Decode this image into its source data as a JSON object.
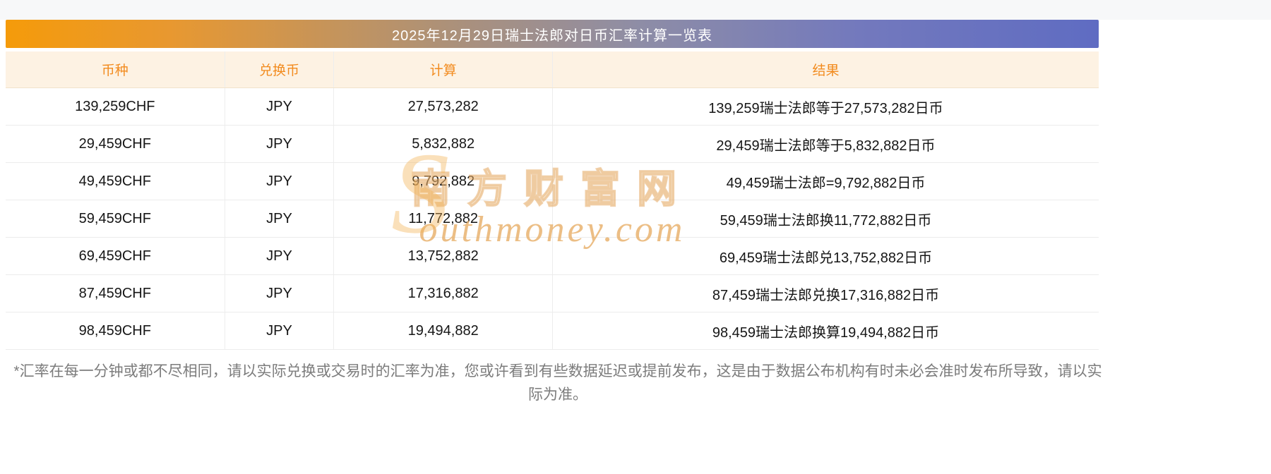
{
  "page": {
    "title": "2025年12月29日瑞士法郎对日币汇率计算一览表",
    "footnote": "*汇率在每一分钟或都不尽相同，请以实际兑换或交易时的汇率为准，您或许看到有些数据延迟或提前发布，这是由于数据公布机构有时未必会准时发布所导致，请以实际为准。"
  },
  "table": {
    "headers": [
      "币种",
      "兑换币",
      "计算",
      "结果"
    ],
    "rows": [
      [
        "139,259CHF",
        "JPY",
        "27,573,282",
        "139,259瑞士法郎等于27,573,282日币"
      ],
      [
        "29,459CHF",
        "JPY",
        "5,832,882",
        "29,459瑞士法郎等于5,832,882日币"
      ],
      [
        "49,459CHF",
        "JPY",
        "9,792,882",
        "49,459瑞士法郎=9,792,882日币"
      ],
      [
        "59,459CHF",
        "JPY",
        "11,772,882",
        "59,459瑞士法郎换11,772,882日币"
      ],
      [
        "69,459CHF",
        "JPY",
        "13,752,882",
        "69,459瑞士法郎兑13,752,882日币"
      ],
      [
        "87,459CHF",
        "JPY",
        "17,316,882",
        "87,459瑞士法郎兑换17,316,882日币"
      ],
      [
        "98,459CHF",
        "JPY",
        "19,494,882",
        "98,459瑞士法郎换算19,494,882日币"
      ]
    ]
  },
  "watermark": {
    "initial": "S",
    "cn": "南方财富网",
    "en": "outhmoney.com"
  },
  "colors": {
    "gradient_start": "#f59b0a",
    "gradient_end": "#5f6cc2",
    "header_bg": "#fdf2e3",
    "header_text": "#f28b1e",
    "title_text": "#ffffff",
    "body_text": "#161616",
    "footnote_text": "#7c7c7c"
  }
}
